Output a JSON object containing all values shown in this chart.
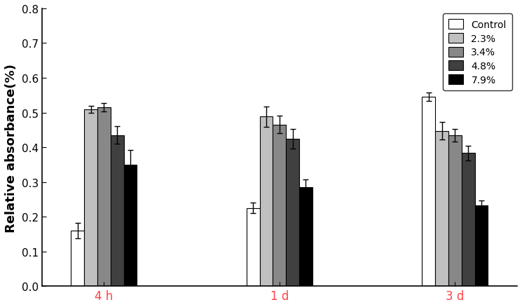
{
  "groups": [
    "4 h",
    "1 d",
    "3 d"
  ],
  "series_labels": [
    "Control",
    "2.3%",
    "3.4%",
    "4.8%",
    "7.9%"
  ],
  "bar_colors": [
    "#ffffff",
    "#c0c0c0",
    "#888888",
    "#404040",
    "#000000"
  ],
  "bar_edgecolor": "#000000",
  "values": [
    [
      0.16,
      0.51,
      0.515,
      0.435,
      0.35
    ],
    [
      0.225,
      0.488,
      0.465,
      0.425,
      0.285
    ],
    [
      0.545,
      0.447,
      0.435,
      0.383,
      0.232
    ]
  ],
  "errors": [
    [
      0.022,
      0.01,
      0.012,
      0.025,
      0.042
    ],
    [
      0.015,
      0.03,
      0.025,
      0.028,
      0.022
    ],
    [
      0.012,
      0.025,
      0.018,
      0.022,
      0.015
    ]
  ],
  "ylabel": "Relative absorbance(%)",
  "ylim": [
    0.0,
    0.8
  ],
  "yticks": [
    0.0,
    0.1,
    0.2,
    0.3,
    0.4,
    0.5,
    0.6,
    0.7,
    0.8
  ],
  "xlabel_color": "#ff4444",
  "tick_fontsize": 11,
  "label_fontsize": 13,
  "legend_fontsize": 10,
  "bar_width": 0.09,
  "group_centers": [
    1.0,
    2.2,
    3.4
  ],
  "background_color": "#ffffff"
}
